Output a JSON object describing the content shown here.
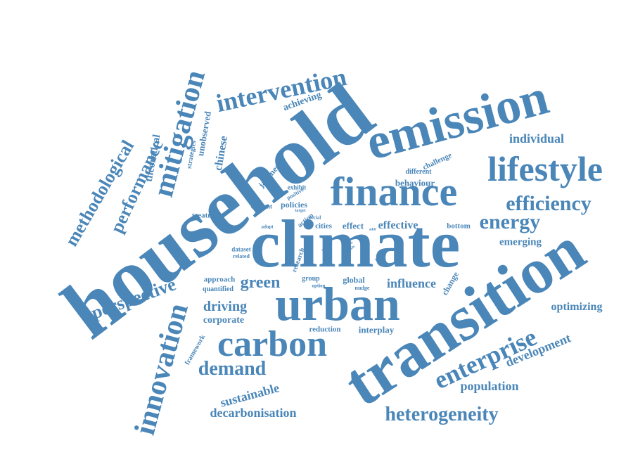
{
  "theme": {
    "word_color": "#4a86b8",
    "background": "#ffffff"
  },
  "words": [
    "household",
    "climate",
    "transition",
    "emission",
    "finance",
    "lifestyle",
    "urban",
    "carbon",
    "mitigation",
    "intervention",
    "innovation",
    "enterprise",
    "efficiency",
    "energy",
    "methodological",
    "performance",
    "perspective",
    "demand",
    "heterogeneity",
    "individual",
    "development",
    "population",
    "driving",
    "green",
    "influence",
    "optimizing",
    "decarbonisation",
    "sustainable",
    "theoretical",
    "chinese",
    "unobserved",
    "strategies",
    "achieving",
    "japanese",
    "challenge",
    "different",
    "behaviour",
    "effective",
    "effect",
    "cities",
    "policies",
    "account",
    "exhibit",
    "positive",
    "target",
    "treatment",
    "adopt",
    "action",
    "social",
    "bottom",
    "emerging",
    "dataset",
    "related",
    "research",
    "level",
    "approach",
    "quantified",
    "group",
    "option",
    "global",
    "nudge",
    "change",
    "corporate",
    "reduction",
    "interplay",
    "framework",
    "study",
    "rule",
    "addr",
    "data",
    "work"
  ]
}
